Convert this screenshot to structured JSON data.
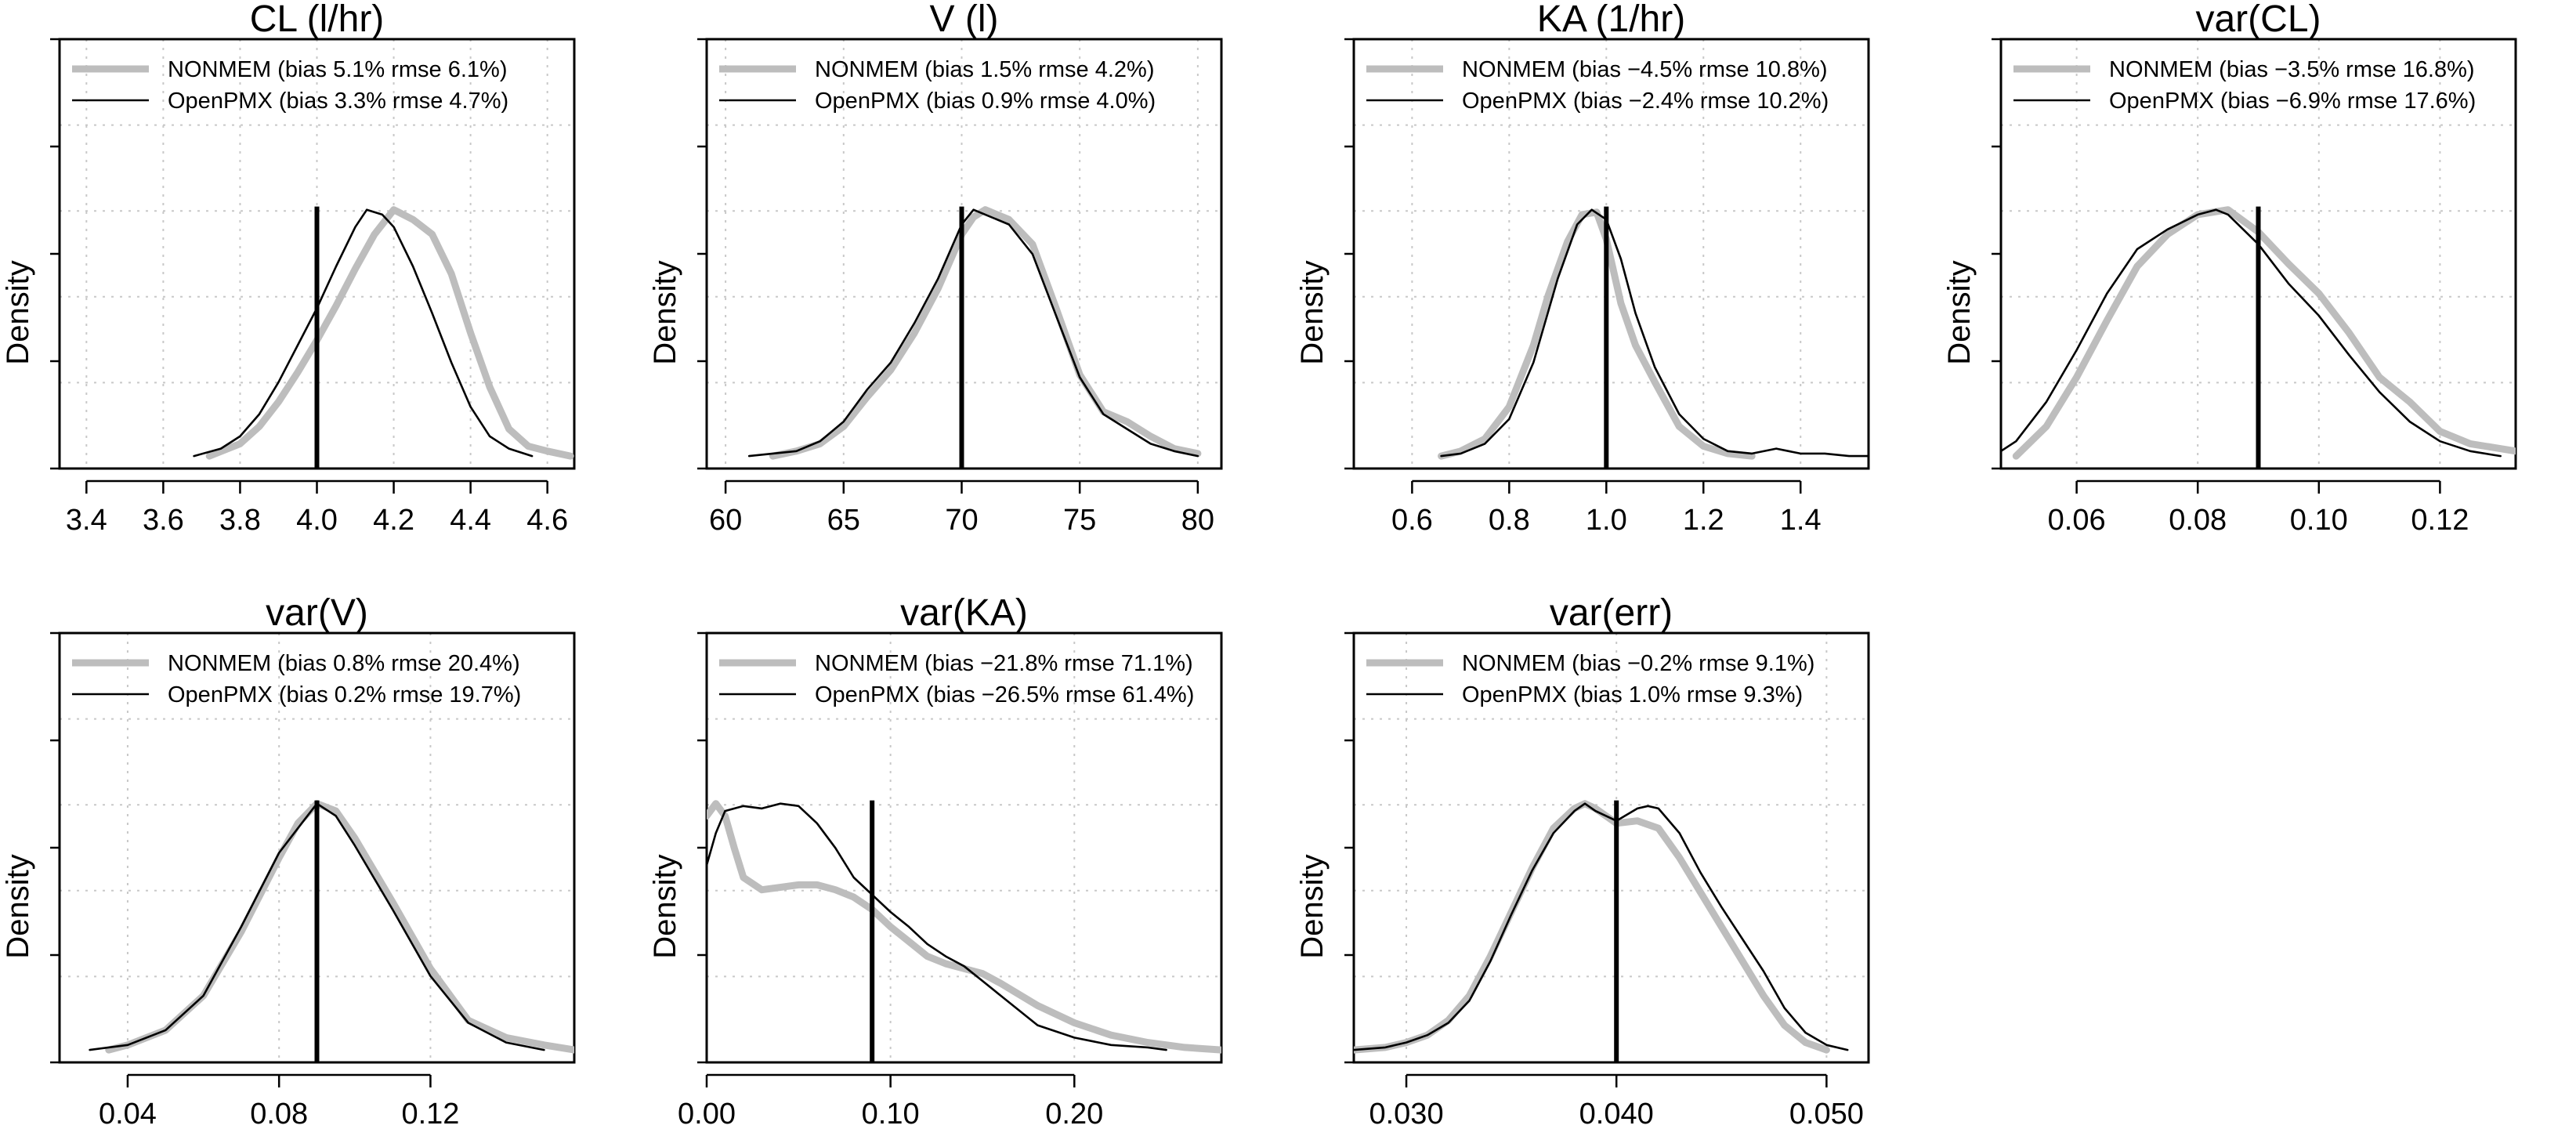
{
  "figure": {
    "y_axis_label": "Density"
  },
  "legend_styles": {
    "NONMEM": {
      "color": "#bdbdbd",
      "width": 9
    },
    "OpenPMX": {
      "color": "#000000",
      "width": 2.6
    },
    "true_line_color": "#000000"
  },
  "chart_data": [
    {
      "type": "line",
      "title": "CL (l/hr)",
      "ylabel": "Density",
      "xlim": [
        3.33,
        4.67
      ],
      "x_ticks": [
        "3.4",
        "3.6",
        "3.8",
        "4.0",
        "4.2",
        "4.4",
        "4.6"
      ],
      "true_value": 4.0,
      "legend": [
        {
          "name": "NONMEM",
          "label": "NONMEM (bias 5.1% rmse 6.1%)"
        },
        {
          "name": "OpenPMX",
          "label": "OpenPMX (bias 3.3% rmse 4.7%)"
        }
      ],
      "series": [
        {
          "name": "NONMEM",
          "x": [
            3.72,
            3.8,
            3.85,
            3.9,
            3.95,
            4.0,
            4.05,
            4.1,
            4.15,
            4.2,
            4.25,
            4.3,
            4.35,
            4.4,
            4.45,
            4.5,
            4.55,
            4.6,
            4.66
          ],
          "y": [
            0.0,
            0.05,
            0.12,
            0.22,
            0.34,
            0.47,
            0.61,
            0.76,
            0.9,
            1.0,
            0.96,
            0.9,
            0.74,
            0.5,
            0.28,
            0.11,
            0.04,
            0.02,
            0.0
          ]
        },
        {
          "name": "OpenPMX",
          "x": [
            3.68,
            3.75,
            3.8,
            3.85,
            3.9,
            3.95,
            4.0,
            4.05,
            4.1,
            4.13,
            4.17,
            4.2,
            4.25,
            4.3,
            4.35,
            4.4,
            4.45,
            4.5,
            4.56
          ],
          "y": [
            0.0,
            0.03,
            0.08,
            0.17,
            0.3,
            0.45,
            0.6,
            0.77,
            0.93,
            1.0,
            0.98,
            0.93,
            0.77,
            0.58,
            0.38,
            0.2,
            0.08,
            0.03,
            0.0
          ]
        }
      ]
    },
    {
      "type": "line",
      "title": "V (l)",
      "ylabel": "Density",
      "xlim": [
        59.2,
        81.0
      ],
      "x_ticks": [
        "60",
        "65",
        "70",
        "75",
        "80"
      ],
      "true_value": 70,
      "legend": [
        {
          "name": "NONMEM",
          "label": "NONMEM (bias 1.5% rmse 4.2%)"
        },
        {
          "name": "OpenPMX",
          "label": "OpenPMX (bias 0.9% rmse 4.0%)"
        }
      ],
      "series": [
        {
          "name": "NONMEM",
          "x": [
            62,
            63,
            64,
            65,
            66,
            67,
            68,
            69,
            70,
            70.5,
            71,
            72,
            73,
            74,
            75,
            76,
            77,
            78,
            79,
            80
          ],
          "y": [
            0.0,
            0.02,
            0.05,
            0.12,
            0.24,
            0.35,
            0.5,
            0.68,
            0.9,
            0.97,
            1.0,
            0.96,
            0.86,
            0.6,
            0.33,
            0.18,
            0.14,
            0.08,
            0.03,
            0.01
          ]
        },
        {
          "name": "OpenPMX",
          "x": [
            61,
            62,
            63,
            64,
            65,
            66,
            67,
            68,
            69,
            70,
            70.5,
            71,
            72,
            73,
            74,
            75,
            76,
            77,
            78,
            79,
            80
          ],
          "y": [
            0.0,
            0.01,
            0.02,
            0.06,
            0.14,
            0.27,
            0.38,
            0.54,
            0.72,
            0.94,
            1.0,
            0.98,
            0.94,
            0.82,
            0.57,
            0.32,
            0.17,
            0.11,
            0.05,
            0.02,
            0.0
          ]
        }
      ]
    },
    {
      "type": "line",
      "title": "KA (1/hr)",
      "ylabel": "Density",
      "xlim": [
        0.48,
        1.54
      ],
      "x_ticks": [
        "0.6",
        "0.8",
        "1.0",
        "1.2",
        "1.4"
      ],
      "true_value": 1.0,
      "legend": [
        {
          "name": "NONMEM",
          "label": "NONMEM (bias −4.5% rmse 10.8%)"
        },
        {
          "name": "OpenPMX",
          "label": "OpenPMX (bias −2.4% rmse 10.2%)"
        }
      ],
      "series": [
        {
          "name": "NONMEM",
          "x": [
            0.66,
            0.7,
            0.75,
            0.8,
            0.85,
            0.88,
            0.92,
            0.95,
            0.98,
            1.0,
            1.03,
            1.06,
            1.1,
            1.15,
            1.2,
            1.25,
            1.3
          ],
          "y": [
            0.0,
            0.02,
            0.07,
            0.2,
            0.45,
            0.65,
            0.87,
            0.98,
            0.99,
            0.88,
            0.62,
            0.45,
            0.3,
            0.12,
            0.04,
            0.01,
            0.0
          ]
        },
        {
          "name": "OpenPMX",
          "x": [
            0.66,
            0.7,
            0.75,
            0.8,
            0.85,
            0.9,
            0.94,
            0.97,
            1.0,
            1.03,
            1.06,
            1.1,
            1.15,
            1.2,
            1.25,
            1.3,
            1.35,
            1.4,
            1.45,
            1.5,
            1.54
          ],
          "y": [
            0.0,
            0.01,
            0.05,
            0.15,
            0.38,
            0.72,
            0.94,
            1.0,
            0.96,
            0.8,
            0.58,
            0.36,
            0.17,
            0.07,
            0.02,
            0.01,
            0.03,
            0.01,
            0.01,
            0.0,
            0.0
          ]
        }
      ]
    },
    {
      "type": "line",
      "title": "var(CL)",
      "ylabel": "Density",
      "xlim": [
        0.0475,
        0.1325
      ],
      "x_ticks": [
        "0.06",
        "0.08",
        "0.10",
        "0.12"
      ],
      "true_value": 0.09,
      "legend": [
        {
          "name": "NONMEM",
          "label": "NONMEM (bias −3.5% rmse 16.8%)"
        },
        {
          "name": "OpenPMX",
          "label": "OpenPMX (bias −6.9% rmse 17.6%)"
        }
      ],
      "series": [
        {
          "name": "NONMEM",
          "x": [
            0.05,
            0.055,
            0.06,
            0.065,
            0.07,
            0.075,
            0.08,
            0.085,
            0.09,
            0.095,
            0.1,
            0.105,
            0.11,
            0.115,
            0.12,
            0.125,
            0.1325
          ],
          "y": [
            0.0,
            0.12,
            0.32,
            0.55,
            0.77,
            0.9,
            0.98,
            1.0,
            0.91,
            0.78,
            0.66,
            0.5,
            0.32,
            0.22,
            0.1,
            0.05,
            0.02
          ]
        },
        {
          "name": "OpenPMX",
          "x": [
            0.0475,
            0.05,
            0.055,
            0.06,
            0.065,
            0.07,
            0.075,
            0.08,
            0.083,
            0.085,
            0.09,
            0.095,
            0.1,
            0.105,
            0.11,
            0.115,
            0.12,
            0.125,
            0.13
          ],
          "y": [
            0.02,
            0.06,
            0.22,
            0.43,
            0.66,
            0.84,
            0.92,
            0.98,
            1.0,
            0.98,
            0.86,
            0.7,
            0.57,
            0.41,
            0.26,
            0.14,
            0.06,
            0.02,
            0.0
          ]
        }
      ]
    },
    {
      "type": "line",
      "title": "var(V)",
      "ylabel": "Density",
      "xlim": [
        0.022,
        0.158
      ],
      "x_ticks": [
        "0.04",
        "0.08",
        "0.12"
      ],
      "true_value": 0.09,
      "legend": [
        {
          "name": "NONMEM",
          "label": "NONMEM (bias 0.8% rmse 20.4%)"
        },
        {
          "name": "OpenPMX",
          "label": "OpenPMX (bias 0.2% rmse 19.7%)"
        }
      ],
      "series": [
        {
          "name": "NONMEM",
          "x": [
            0.035,
            0.04,
            0.05,
            0.06,
            0.07,
            0.08,
            0.085,
            0.09,
            0.095,
            0.1,
            0.11,
            0.12,
            0.13,
            0.14,
            0.15,
            0.158
          ],
          "y": [
            0.0,
            0.02,
            0.08,
            0.22,
            0.48,
            0.78,
            0.92,
            1.0,
            0.97,
            0.86,
            0.6,
            0.33,
            0.12,
            0.05,
            0.02,
            0.0
          ]
        },
        {
          "name": "OpenPMX",
          "x": [
            0.03,
            0.04,
            0.05,
            0.06,
            0.07,
            0.08,
            0.085,
            0.09,
            0.095,
            0.1,
            0.11,
            0.12,
            0.13,
            0.14,
            0.15
          ],
          "y": [
            0.0,
            0.02,
            0.08,
            0.22,
            0.5,
            0.8,
            0.9,
            1.0,
            0.95,
            0.83,
            0.57,
            0.3,
            0.11,
            0.03,
            0.0
          ]
        }
      ]
    },
    {
      "type": "line",
      "title": "var(KA)",
      "ylabel": "Density",
      "xlim": [
        0.0,
        0.28
      ],
      "x_ticks": [
        "0.00",
        "0.10",
        "0.20"
      ],
      "true_value": 0.09,
      "legend": [
        {
          "name": "NONMEM",
          "label": "NONMEM (bias −21.8% rmse 71.1%)"
        },
        {
          "name": "OpenPMX",
          "label": "OpenPMX (bias −26.5% rmse 61.4%)"
        }
      ],
      "series": [
        {
          "name": "NONMEM",
          "x": [
            0.0,
            0.005,
            0.01,
            0.015,
            0.02,
            0.03,
            0.04,
            0.05,
            0.06,
            0.07,
            0.08,
            0.09,
            0.1,
            0.11,
            0.12,
            0.13,
            0.14,
            0.15,
            0.16,
            0.18,
            0.2,
            0.22,
            0.24,
            0.26,
            0.28
          ],
          "y": [
            0.95,
            1.0,
            0.95,
            0.82,
            0.7,
            0.65,
            0.66,
            0.67,
            0.67,
            0.65,
            0.62,
            0.57,
            0.5,
            0.44,
            0.38,
            0.35,
            0.33,
            0.31,
            0.27,
            0.18,
            0.11,
            0.06,
            0.03,
            0.01,
            0.0
          ]
        },
        {
          "name": "OpenPMX",
          "x": [
            0.0,
            0.005,
            0.01,
            0.02,
            0.03,
            0.04,
            0.05,
            0.06,
            0.07,
            0.08,
            0.09,
            0.1,
            0.11,
            0.12,
            0.13,
            0.14,
            0.15,
            0.16,
            0.18,
            0.2,
            0.22,
            0.24,
            0.25
          ],
          "y": [
            0.75,
            0.88,
            0.97,
            0.99,
            0.98,
            1.0,
            0.99,
            0.92,
            0.82,
            0.7,
            0.63,
            0.56,
            0.5,
            0.43,
            0.38,
            0.34,
            0.28,
            0.22,
            0.1,
            0.05,
            0.02,
            0.01,
            0.0
          ]
        }
      ]
    },
    {
      "type": "line",
      "title": "var(err)",
      "ylabel": "Density",
      "xlim": [
        0.0275,
        0.052
      ],
      "x_ticks": [
        "0.030",
        "0.040",
        "0.050"
      ],
      "true_value": 0.04,
      "legend": [
        {
          "name": "NONMEM",
          "label": "NONMEM (bias −0.2% rmse 9.1%)"
        },
        {
          "name": "OpenPMX",
          "label": "OpenPMX (bias 1.0% rmse 9.3%)"
        }
      ],
      "series": [
        {
          "name": "NONMEM",
          "x": [
            0.0275,
            0.029,
            0.03,
            0.031,
            0.032,
            0.033,
            0.034,
            0.035,
            0.036,
            0.037,
            0.038,
            0.0385,
            0.039,
            0.04,
            0.041,
            0.042,
            0.043,
            0.044,
            0.045,
            0.046,
            0.047,
            0.048,
            0.049,
            0.05
          ],
          "y": [
            0.0,
            0.01,
            0.03,
            0.06,
            0.12,
            0.22,
            0.38,
            0.56,
            0.74,
            0.9,
            0.98,
            1.0,
            0.98,
            0.92,
            0.93,
            0.9,
            0.78,
            0.64,
            0.5,
            0.36,
            0.22,
            0.1,
            0.03,
            0.0
          ]
        },
        {
          "name": "OpenPMX",
          "x": [
            0.0275,
            0.029,
            0.03,
            0.031,
            0.032,
            0.033,
            0.034,
            0.035,
            0.036,
            0.037,
            0.038,
            0.0385,
            0.039,
            0.04,
            0.041,
            0.0415,
            0.042,
            0.043,
            0.044,
            0.045,
            0.046,
            0.047,
            0.048,
            0.049,
            0.05,
            0.051
          ],
          "y": [
            0.0,
            0.01,
            0.03,
            0.06,
            0.11,
            0.2,
            0.36,
            0.55,
            0.73,
            0.88,
            0.97,
            1.0,
            0.97,
            0.93,
            0.98,
            0.99,
            0.98,
            0.88,
            0.72,
            0.58,
            0.45,
            0.32,
            0.17,
            0.07,
            0.02,
            0.0
          ]
        }
      ]
    }
  ]
}
